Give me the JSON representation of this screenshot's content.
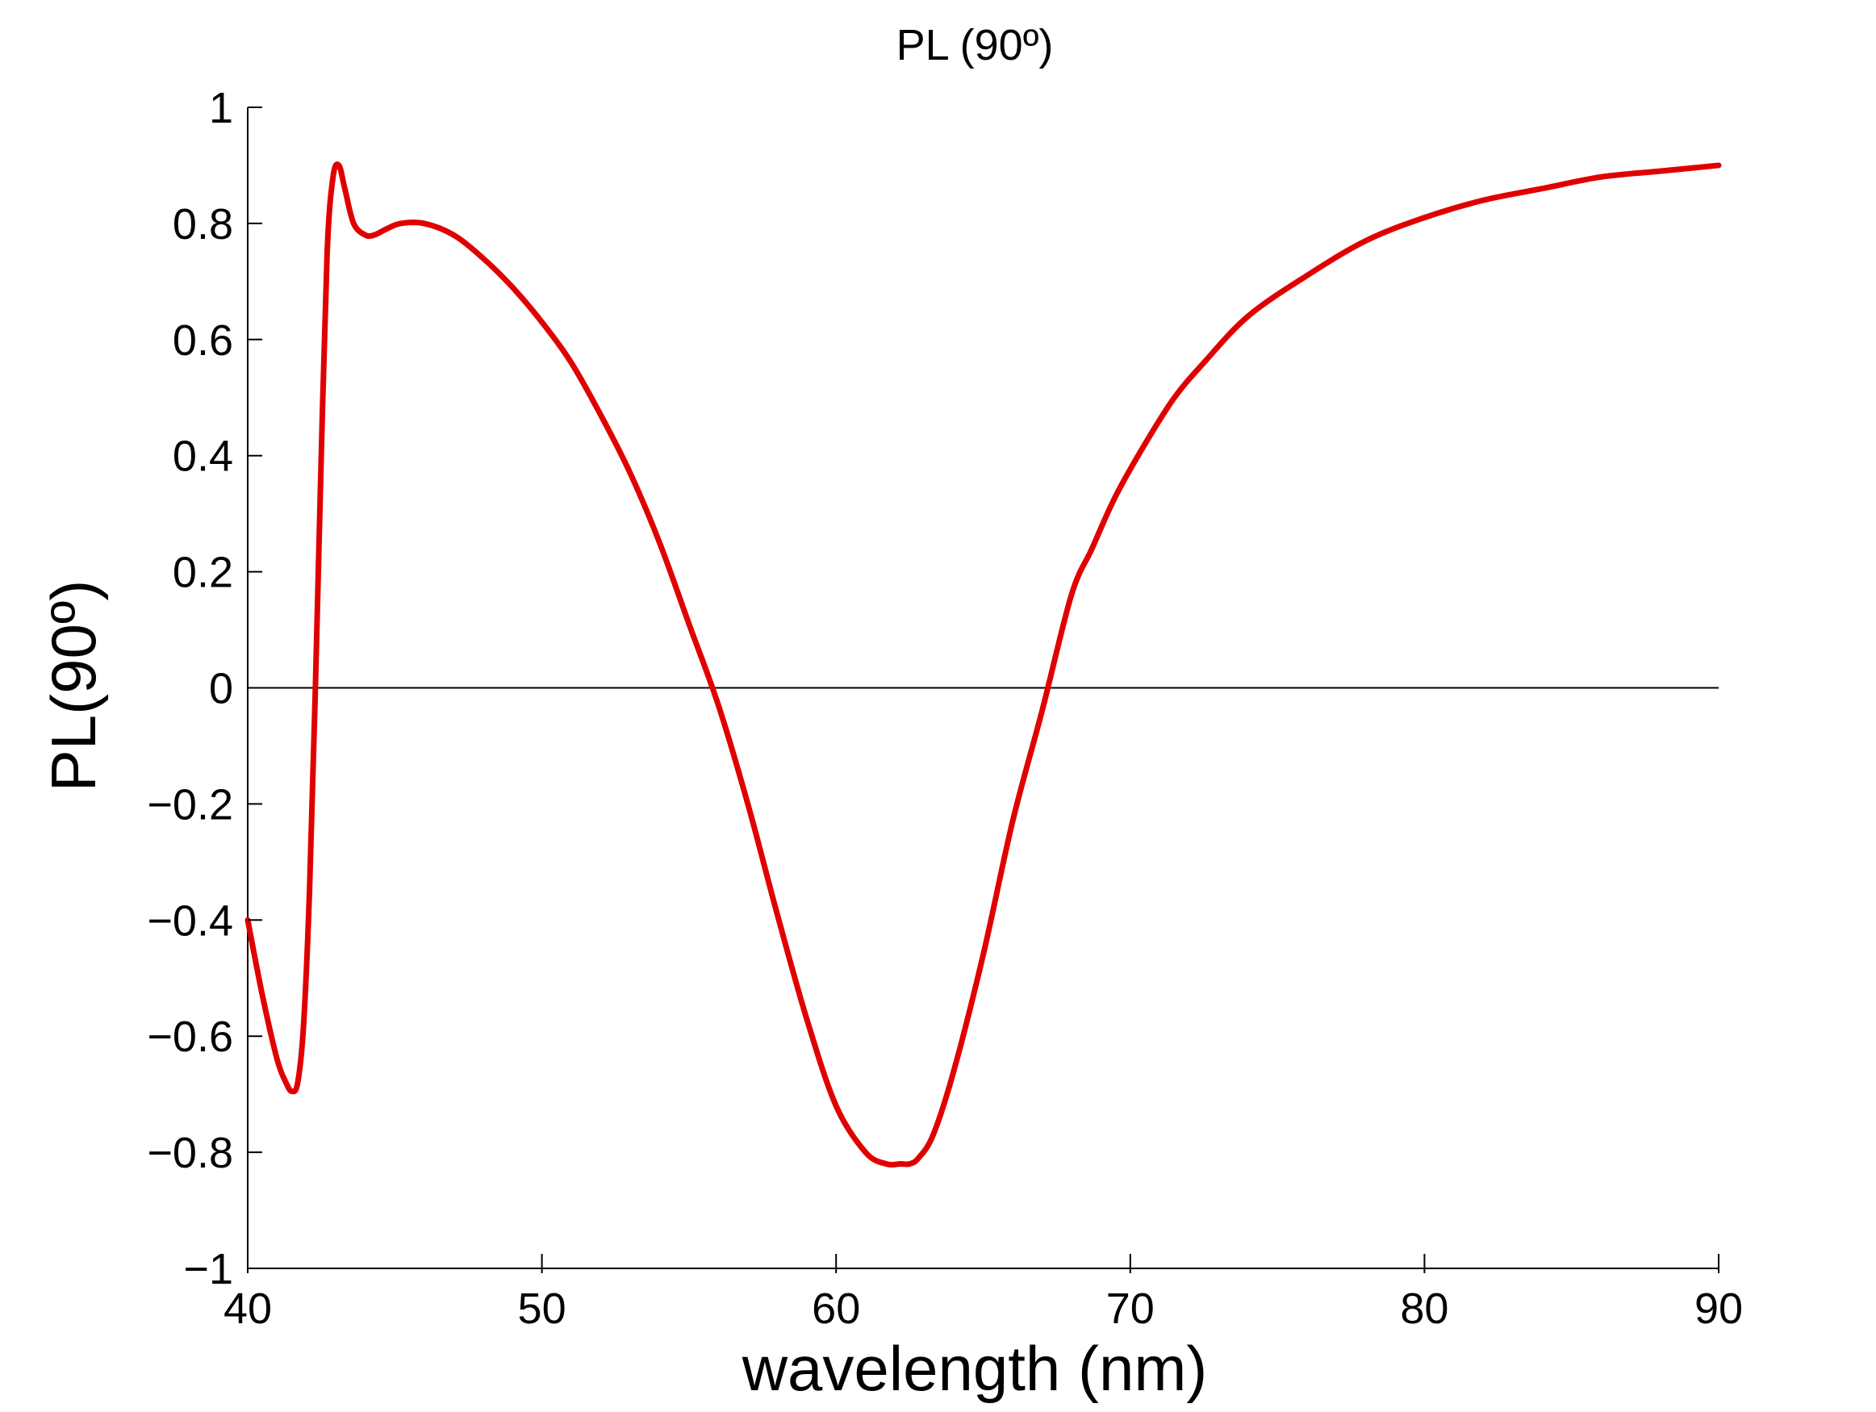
{
  "chart_data": {
    "type": "line",
    "title": "PL (90º)",
    "xlabel": "wavelength (nm)",
    "ylabel": "PL(90º)",
    "xlim": [
      40,
      90
    ],
    "ylim": [
      -1,
      1
    ],
    "x_ticks": [
      40,
      50,
      60,
      70,
      80,
      90
    ],
    "x_tick_labels": [
      "40",
      "50",
      "60",
      "70",
      "80",
      "90"
    ],
    "y_ticks": [
      -1,
      -0.8,
      -0.6,
      -0.4,
      -0.2,
      0,
      0.2,
      0.4,
      0.6,
      0.8,
      1
    ],
    "y_tick_labels": [
      "−1",
      "−0.8",
      "−0.6",
      "−0.4",
      "−0.2",
      "0",
      "0.2",
      "0.4",
      "0.6",
      "0.8",
      "1"
    ],
    "zero_line": true,
    "grid": false,
    "series": [
      {
        "color": "#e00000",
        "x": [
          40,
          40.5,
          41,
          41.3,
          41.5,
          41.7,
          41.9,
          42.1,
          42.3,
          42.5,
          42.7,
          42.9,
          43.1,
          43.3,
          43.6,
          44,
          44.3,
          44.7,
          45.2,
          46,
          47,
          48,
          49,
          50,
          51,
          52,
          53,
          54,
          55,
          56,
          57,
          58,
          59,
          60,
          61,
          61.7,
          62.2,
          62.5,
          62.8,
          63.3,
          64,
          65,
          66,
          67,
          68,
          68.7,
          69.5,
          70.5,
          71.5,
          72.5,
          74,
          76,
          78,
          80,
          82,
          84,
          86,
          88,
          90
        ],
        "y": [
          -0.4,
          -0.53,
          -0.64,
          -0.68,
          -0.695,
          -0.68,
          -0.58,
          -0.35,
          0.0,
          0.4,
          0.75,
          0.88,
          0.9,
          0.86,
          0.8,
          0.78,
          0.78,
          0.79,
          0.8,
          0.8,
          0.78,
          0.74,
          0.69,
          0.63,
          0.56,
          0.47,
          0.37,
          0.25,
          0.11,
          -0.03,
          -0.2,
          -0.39,
          -0.57,
          -0.72,
          -0.8,
          -0.82,
          -0.82,
          -0.82,
          -0.81,
          -0.77,
          -0.66,
          -0.46,
          -0.23,
          -0.04,
          0.16,
          0.24,
          0.33,
          0.42,
          0.5,
          0.56,
          0.64,
          0.71,
          0.77,
          0.81,
          0.84,
          0.86,
          0.88,
          0.89,
          0.9
        ]
      }
    ]
  }
}
